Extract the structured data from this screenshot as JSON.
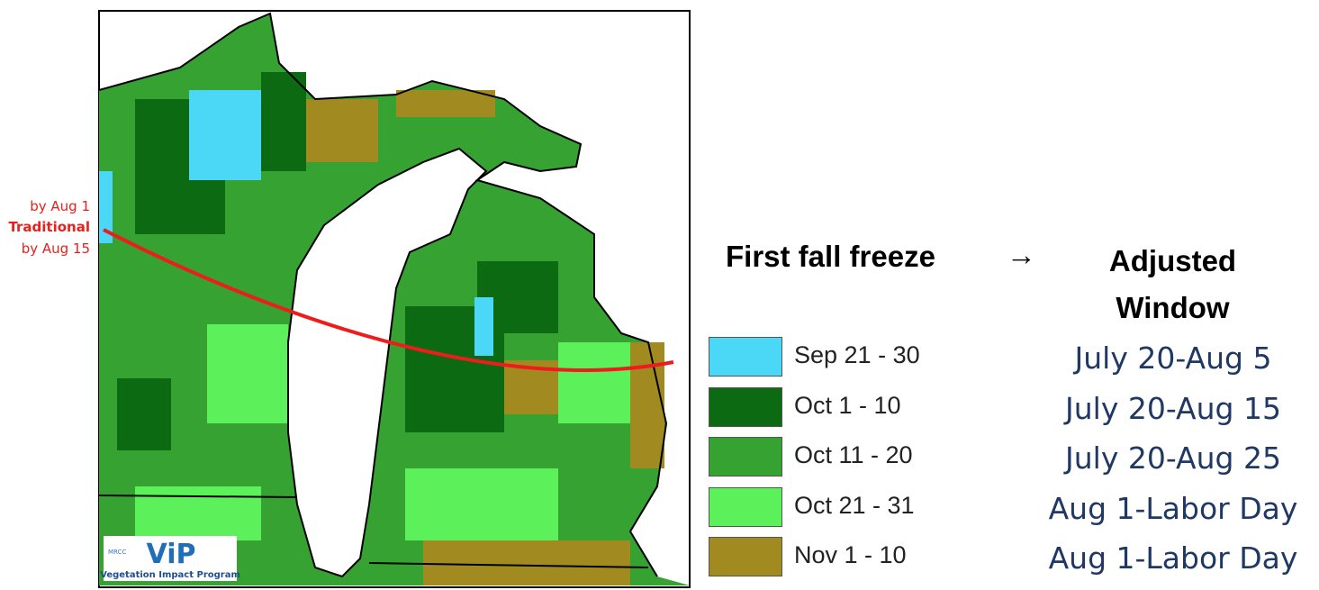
{
  "annotations": {
    "line_top": "by Aug 1",
    "line_label": "Traditional",
    "line_bottom": "by Aug 15"
  },
  "header": {
    "left": "First fall freeze",
    "arrow": "→",
    "right": "Adjusted Window"
  },
  "legend": [
    {
      "label": "Sep 21 - 30",
      "color": "#4ad8f6",
      "window": "July 20-Aug 5"
    },
    {
      "label": "Oct 1 - 10",
      "color": "#0b6a12",
      "window": "July 20-Aug 15"
    },
    {
      "label": "Oct 11 - 20",
      "color": "#35a232",
      "window": "July 20-Aug 25"
    },
    {
      "label": "Oct 21 - 31",
      "color": "#5cf15a",
      "window": "Aug 1-Labor Day"
    },
    {
      "label": "Nov 1 - 10",
      "color": "#a18a20",
      "window": "Aug 1-Labor Day"
    }
  ],
  "logo": {
    "org": "MRCC",
    "name": "ViP",
    "subtitle": "Vegetation Impact Program"
  }
}
